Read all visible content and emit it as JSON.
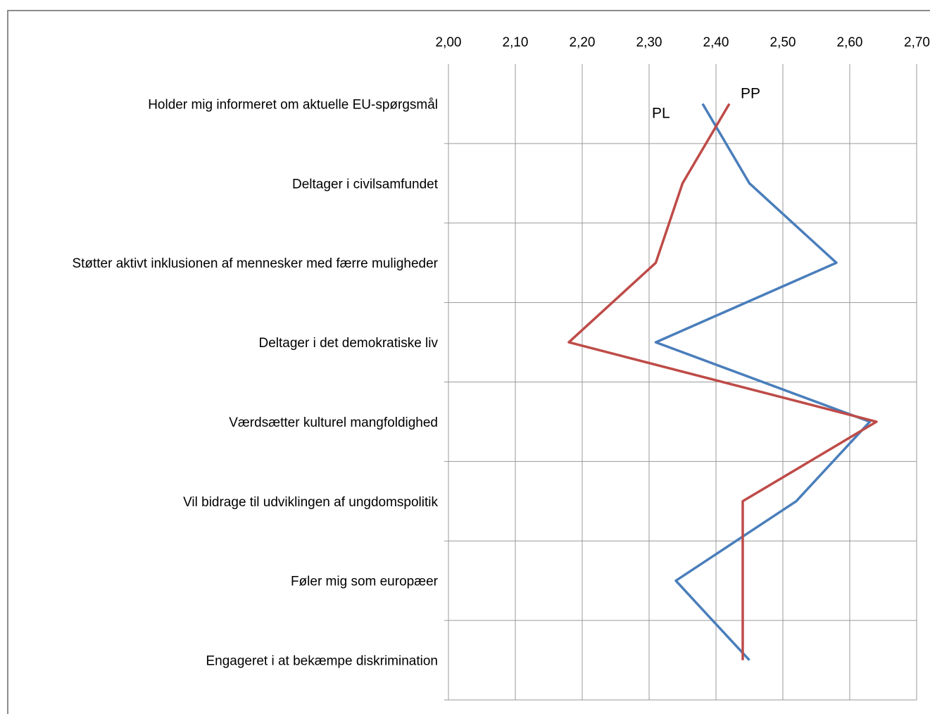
{
  "chart_data": {
    "type": "line",
    "orientation": "horizontal-values",
    "categories": [
      "Holder mig informeret om aktuelle EU-spørgsmål",
      "Deltager i civilsamfundet",
      "Støtter aktivt inklusionen af mennesker med færre muligheder",
      "Deltager i det demokratiske liv",
      "Værdsætter kulturel mangfoldighed",
      "Vil bidrage til udviklingen af ungdomspolitik",
      "Føler mig som europæer",
      "Engageret i at bekæmpe diskrimination"
    ],
    "series": [
      {
        "name": "PL",
        "color": "#4a7ebb",
        "values": [
          2.38,
          2.45,
          2.58,
          2.31,
          2.63,
          2.52,
          2.34,
          2.45
        ]
      },
      {
        "name": "PP",
        "color": "#be4b48",
        "values": [
          2.42,
          2.35,
          2.31,
          2.18,
          2.64,
          2.44,
          2.44,
          2.44
        ]
      }
    ],
    "xlim": [
      2.0,
      2.7
    ],
    "xticks": [
      "2,00",
      "2,10",
      "2,20",
      "2,30",
      "2,40",
      "2,50",
      "2,60",
      "2,70"
    ],
    "grid": true,
    "legend": "inline labels"
  }
}
